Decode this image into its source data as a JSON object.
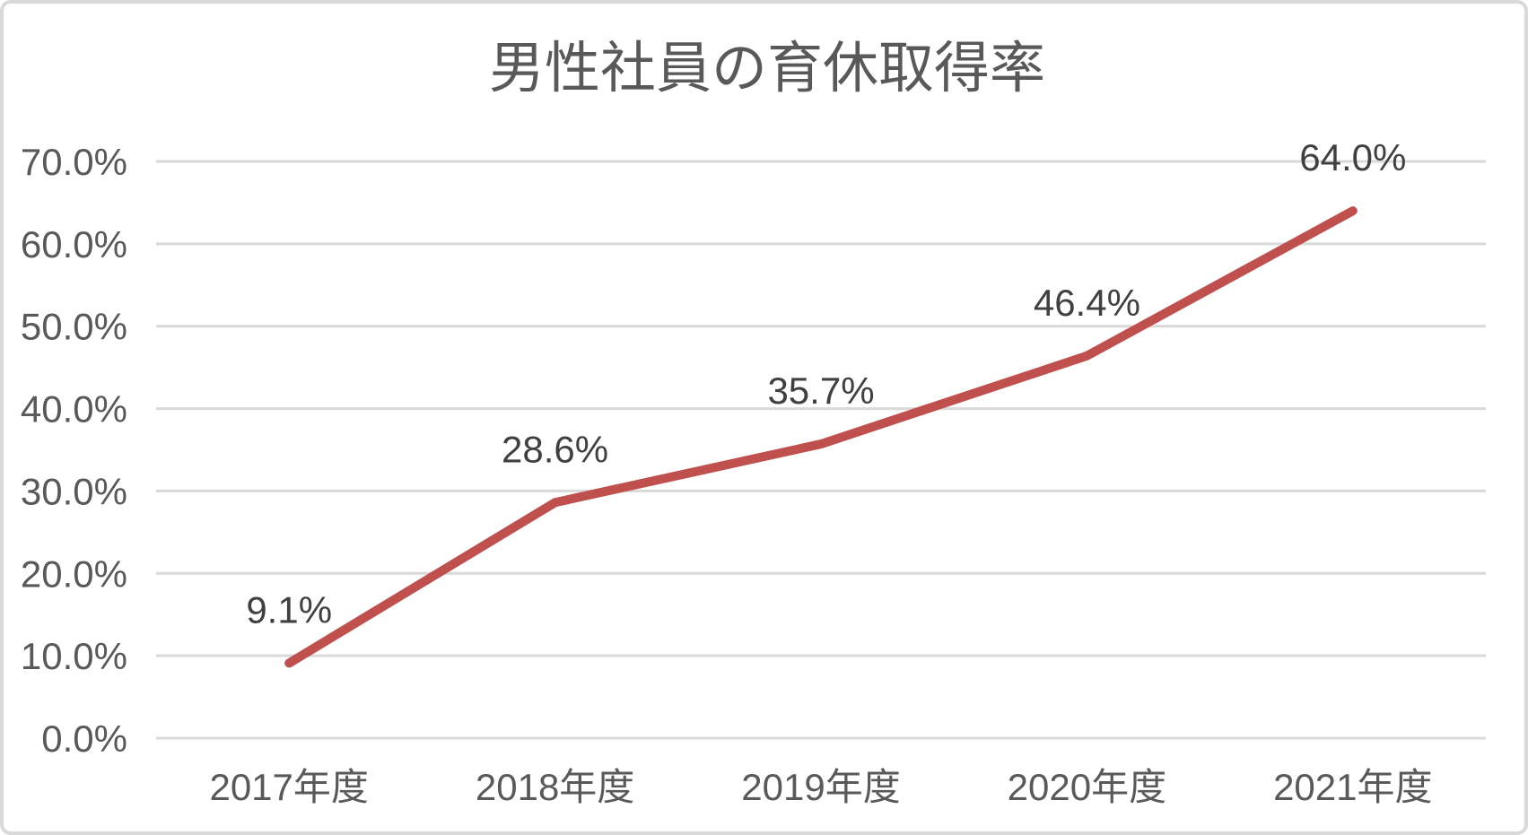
{
  "chart_data": {
    "type": "line",
    "title": "男性社員の育休取得率",
    "categories": [
      "2017年度",
      "2018年度",
      "2019年度",
      "2020年度",
      "2021年度"
    ],
    "values": [
      9.1,
      28.6,
      35.7,
      46.4,
      64.0
    ],
    "data_labels": [
      "9.1%",
      "28.6%",
      "35.7%",
      "46.4%",
      "64.0%"
    ],
    "y_ticks": [
      {
        "value": 0,
        "label": "0.0%"
      },
      {
        "value": 10,
        "label": "10.0%"
      },
      {
        "value": 20,
        "label": "20.0%"
      },
      {
        "value": 30,
        "label": "30.0%"
      },
      {
        "value": 40,
        "label": "40.0%"
      },
      {
        "value": 50,
        "label": "50.0%"
      },
      {
        "value": 60,
        "label": "60.0%"
      },
      {
        "value": 70,
        "label": "70.0%"
      }
    ],
    "ylim": [
      0,
      70
    ],
    "xlabel": "",
    "ylabel": "",
    "grid": true,
    "legend": "none",
    "colors": {
      "line": "#C0504D",
      "gridline": "#D9D9D9",
      "axis_text": "#595959",
      "data_label_text": "#404040",
      "title_text": "#595959",
      "frame_border": "#D9D9D9",
      "background": "#FFFFFF"
    }
  }
}
